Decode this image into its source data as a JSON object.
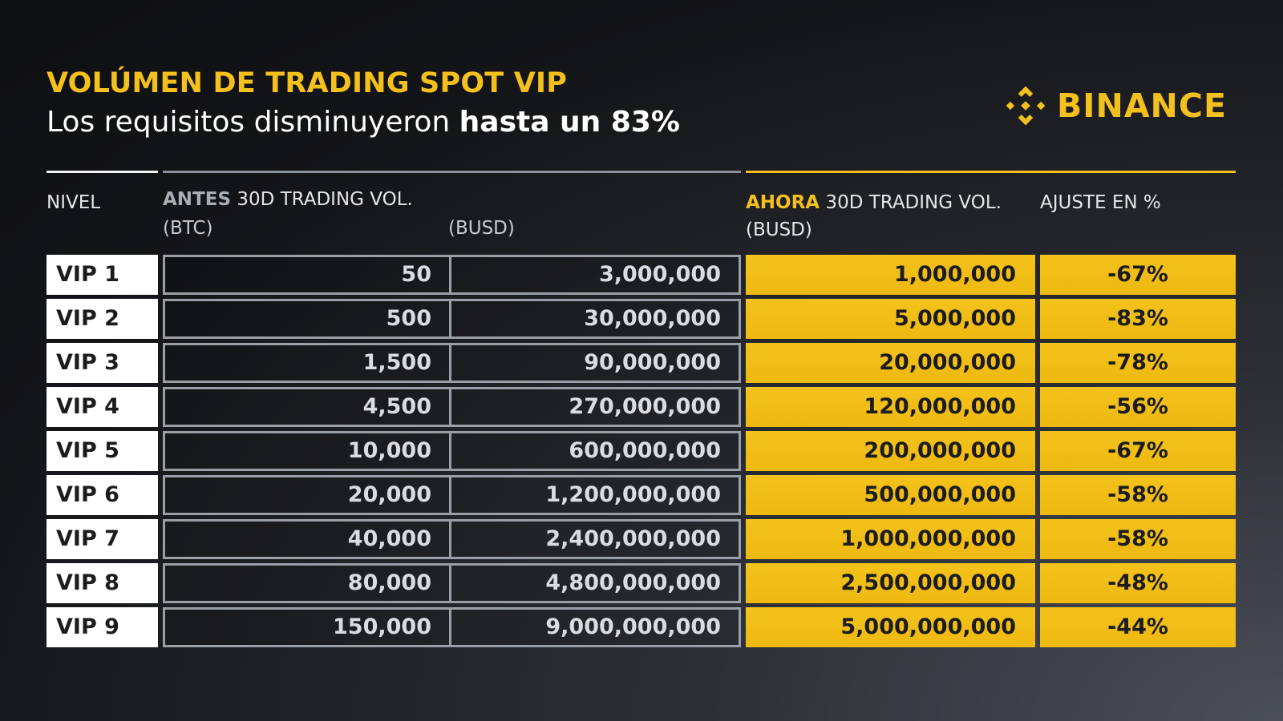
{
  "title": "VOLÚMEN DE TRADING SPOT VIP",
  "subtitle_prefix": "Los requisitos disminuyeron ",
  "subtitle_bold": "hasta un 83%",
  "logo_text": "BINANCE",
  "colors": {
    "brand_yellow": "#F3C01E",
    "background": "#141518",
    "old_border": "#9A9EA6"
  },
  "headers": {
    "nivel": "NIVEL",
    "antes_word": "ANTES",
    "antes_rest": " 30D TRADING VOL.",
    "btc_unit": "(BTC)",
    "busd_old_unit": "(BUSD)",
    "ahora_word": "AHORA",
    "ahora_rest": " 30D TRADING VOL.",
    "busd_new_unit": "(BUSD)",
    "ajuste": "AJUSTE EN %"
  },
  "rows": [
    {
      "level": "VIP 1",
      "btc": "50",
      "busd_old": "3,000,000",
      "busd_new": "1,000,000",
      "adj": "-67%"
    },
    {
      "level": "VIP 2",
      "btc": "500",
      "busd_old": "30,000,000",
      "busd_new": "5,000,000",
      "adj": "-83%"
    },
    {
      "level": "VIP 3",
      "btc": "1,500",
      "busd_old": "90,000,000",
      "busd_new": "20,000,000",
      "adj": "-78%"
    },
    {
      "level": "VIP 4",
      "btc": "4,500",
      "busd_old": "270,000,000",
      "busd_new": "120,000,000",
      "adj": "-56%"
    },
    {
      "level": "VIP 5",
      "btc": "10,000",
      "busd_old": "600,000,000",
      "busd_new": "200,000,000",
      "adj": "-67%"
    },
    {
      "level": "VIP 6",
      "btc": "20,000",
      "busd_old": "1,200,000,000",
      "busd_new": "500,000,000",
      "adj": "-58%"
    },
    {
      "level": "VIP 7",
      "btc": "40,000",
      "busd_old": "2,400,000,000",
      "busd_new": "1,000,000,000",
      "adj": "-58%"
    },
    {
      "level": "VIP 8",
      "btc": "80,000",
      "busd_old": "4,800,000,000",
      "busd_new": "2,500,000,000",
      "adj": "-48%"
    },
    {
      "level": "VIP 9",
      "btc": "150,000",
      "busd_old": "9,000,000,000",
      "busd_new": "5,000,000,000",
      "adj": "-44%"
    }
  ]
}
